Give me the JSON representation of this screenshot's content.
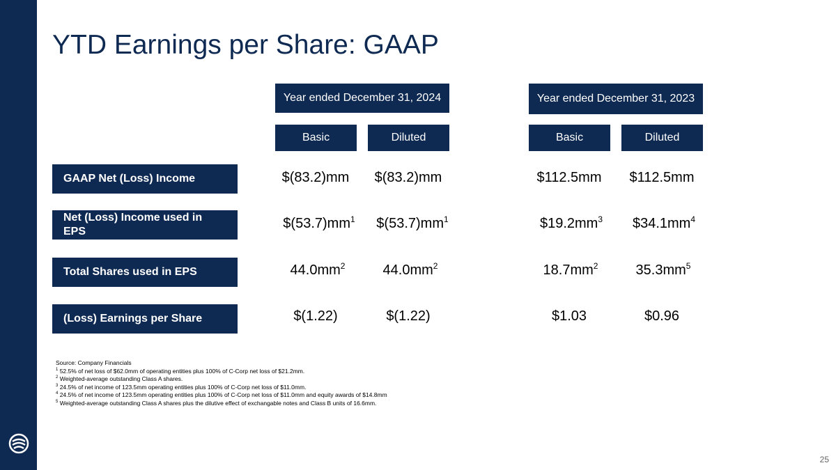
{
  "slide": {
    "title": "YTD Earnings per Share: GAAP",
    "page_number": "25"
  },
  "periods": [
    {
      "label": "Year ended December 31, 2024",
      "basic": "Basic",
      "diluted": "Diluted"
    },
    {
      "label": "Year ended December 31, 2023",
      "basic": "Basic",
      "diluted": "Diluted"
    }
  ],
  "rows": [
    {
      "label": "GAAP Net (Loss) Income",
      "values": [
        {
          "text": "$(83.2)mm",
          "note": ""
        },
        {
          "text": "$(83.2)mm",
          "note": ""
        },
        {
          "text": "$112.5mm",
          "note": ""
        },
        {
          "text": "$112.5mm",
          "note": ""
        }
      ]
    },
    {
      "label": "Net (Loss) Income used in EPS",
      "values": [
        {
          "text": "$(53.7)mm",
          "note": "1"
        },
        {
          "text": "$(53.7)mm",
          "note": "1"
        },
        {
          "text": "$19.2mm",
          "note": "3"
        },
        {
          "text": "$34.1mm",
          "note": "4"
        }
      ]
    },
    {
      "label": "Total Shares used in EPS",
      "values": [
        {
          "text": "44.0mm",
          "note": "2"
        },
        {
          "text": "44.0mm",
          "note": "2"
        },
        {
          "text": "18.7mm",
          "note": "2"
        },
        {
          "text": "35.3mm",
          "note": "5"
        }
      ]
    },
    {
      "label": "(Loss) Earnings per Share",
      "values": [
        {
          "text": "$(1.22)",
          "note": ""
        },
        {
          "text": "$(1.22)",
          "note": ""
        },
        {
          "text": "$1.03",
          "note": ""
        },
        {
          "text": "$0.96",
          "note": ""
        }
      ]
    }
  ],
  "footnotes": {
    "source": "Source: Company Financials",
    "items": [
      {
        "mark": "1",
        "text": " 52.5% of net loss of $62.0mm of operating entities plus 100% of C-Corp net loss of $21.2mm."
      },
      {
        "mark": "2",
        "text": "  Weighted-average outstanding Class A shares."
      },
      {
        "mark": "3",
        "text": " 24.5% of net income of 123.5mm  operating entities plus 100% of C-Corp net loss of $11.0mm."
      },
      {
        "mark": "4",
        "text": " 24.5% of net income of 123.5mm  operating entities plus 100% of C-Corp net loss of $11.0mm and equity awards of $14.8mm"
      },
      {
        "mark": "5",
        "text": "  Weighted-average outstanding Class A shares plus the dilutive effect of exchangable notes and Class B units of 16.6mm."
      }
    ]
  },
  "theme": {
    "navy": "#0f2a52"
  },
  "icons": {
    "logo": "company-logo-icon"
  }
}
